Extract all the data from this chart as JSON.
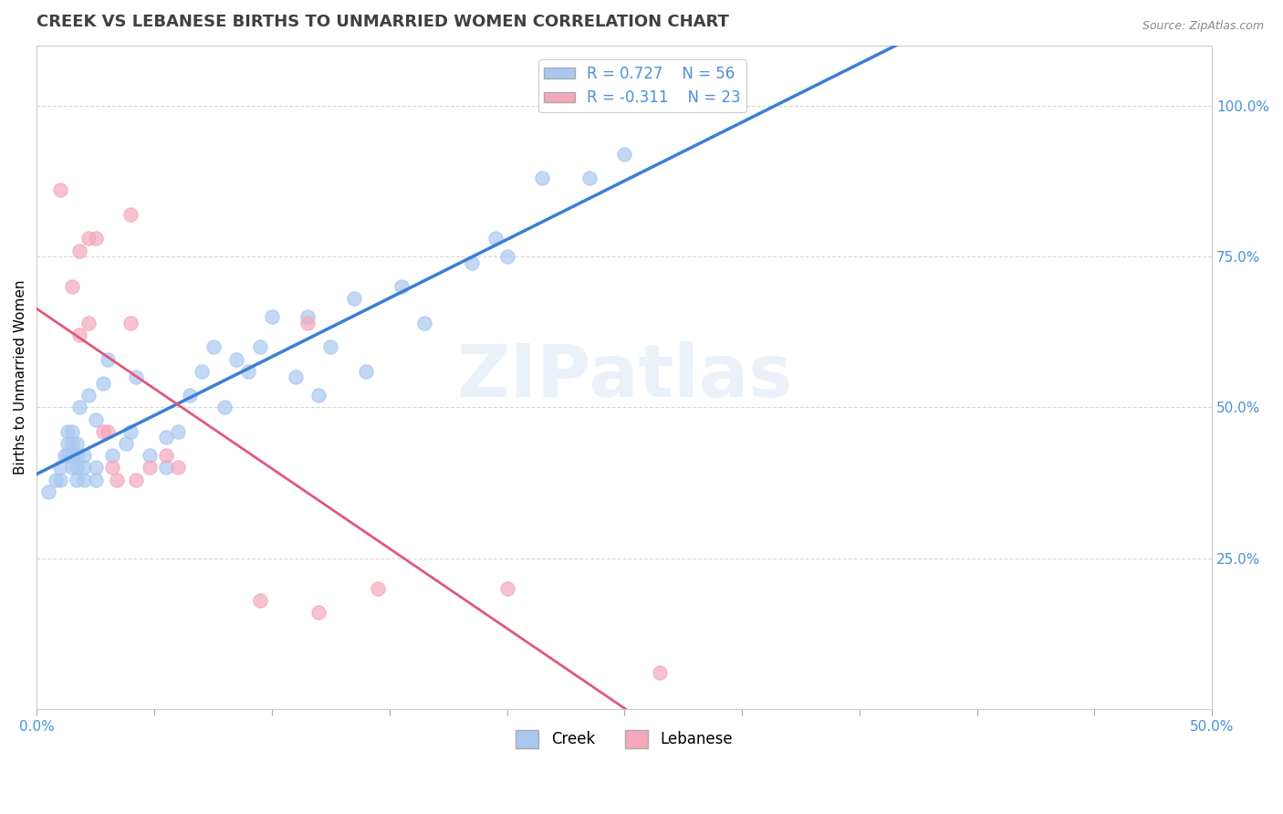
{
  "title": "CREEK VS LEBANESE BIRTHS TO UNMARRIED WOMEN CORRELATION CHART",
  "source": "Source: ZipAtlas.com",
  "ylabel": "Births to Unmarried Women",
  "xlim": [
    0.0,
    0.5
  ],
  "ylim": [
    0.0,
    1.1
  ],
  "x_tick_positions": [
    0.0,
    0.05,
    0.1,
    0.15,
    0.2,
    0.25,
    0.3,
    0.35,
    0.4,
    0.45,
    0.5
  ],
  "x_tick_labels": [
    "0.0%",
    "",
    "",
    "",
    "",
    "",
    "",
    "",
    "",
    "",
    "50.0%"
  ],
  "y_tick_positions": [
    0.25,
    0.5,
    0.75,
    1.0
  ],
  "y_tick_labels": [
    "25.0%",
    "50.0%",
    "75.0%",
    "100.0%"
  ],
  "creek_color": "#a8c8f0",
  "lebanese_color": "#f4a8bc",
  "creek_line_color": "#3a7fd5",
  "lebanese_line_color": "#e05878",
  "creek_scatter": [
    [
      0.005,
      0.36
    ],
    [
      0.008,
      0.38
    ],
    [
      0.01,
      0.38
    ],
    [
      0.01,
      0.4
    ],
    [
      0.012,
      0.42
    ],
    [
      0.013,
      0.42
    ],
    [
      0.013,
      0.44
    ],
    [
      0.013,
      0.46
    ],
    [
      0.015,
      0.4
    ],
    [
      0.015,
      0.42
    ],
    [
      0.015,
      0.44
    ],
    [
      0.015,
      0.46
    ],
    [
      0.017,
      0.38
    ],
    [
      0.017,
      0.4
    ],
    [
      0.017,
      0.42
    ],
    [
      0.017,
      0.44
    ],
    [
      0.018,
      0.5
    ],
    [
      0.02,
      0.38
    ],
    [
      0.02,
      0.4
    ],
    [
      0.02,
      0.42
    ],
    [
      0.022,
      0.52
    ],
    [
      0.025,
      0.38
    ],
    [
      0.025,
      0.4
    ],
    [
      0.025,
      0.48
    ],
    [
      0.028,
      0.54
    ],
    [
      0.03,
      0.58
    ],
    [
      0.032,
      0.42
    ],
    [
      0.038,
      0.44
    ],
    [
      0.04,
      0.46
    ],
    [
      0.042,
      0.55
    ],
    [
      0.048,
      0.42
    ],
    [
      0.055,
      0.4
    ],
    [
      0.055,
      0.45
    ],
    [
      0.06,
      0.46
    ],
    [
      0.065,
      0.52
    ],
    [
      0.07,
      0.56
    ],
    [
      0.075,
      0.6
    ],
    [
      0.08,
      0.5
    ],
    [
      0.085,
      0.58
    ],
    [
      0.09,
      0.56
    ],
    [
      0.095,
      0.6
    ],
    [
      0.1,
      0.65
    ],
    [
      0.11,
      0.55
    ],
    [
      0.115,
      0.65
    ],
    [
      0.12,
      0.52
    ],
    [
      0.125,
      0.6
    ],
    [
      0.135,
      0.68
    ],
    [
      0.14,
      0.56
    ],
    [
      0.155,
      0.7
    ],
    [
      0.165,
      0.64
    ],
    [
      0.185,
      0.74
    ],
    [
      0.195,
      0.78
    ],
    [
      0.2,
      0.75
    ],
    [
      0.215,
      0.88
    ],
    [
      0.235,
      0.88
    ],
    [
      0.25,
      0.92
    ]
  ],
  "lebanese_scatter": [
    [
      0.01,
      0.86
    ],
    [
      0.015,
      0.7
    ],
    [
      0.018,
      0.76
    ],
    [
      0.018,
      0.62
    ],
    [
      0.022,
      0.78
    ],
    [
      0.022,
      0.64
    ],
    [
      0.025,
      0.78
    ],
    [
      0.028,
      0.46
    ],
    [
      0.03,
      0.46
    ],
    [
      0.032,
      0.4
    ],
    [
      0.034,
      0.38
    ],
    [
      0.04,
      0.82
    ],
    [
      0.04,
      0.64
    ],
    [
      0.042,
      0.38
    ],
    [
      0.048,
      0.4
    ],
    [
      0.055,
      0.42
    ],
    [
      0.06,
      0.4
    ],
    [
      0.095,
      0.18
    ],
    [
      0.115,
      0.64
    ],
    [
      0.12,
      0.16
    ],
    [
      0.145,
      0.2
    ],
    [
      0.2,
      0.2
    ],
    [
      0.265,
      0.06
    ]
  ],
  "background_color": "#ffffff",
  "grid_color": "#cccccc",
  "title_fontsize": 13,
  "label_fontsize": 11,
  "tick_fontsize": 11,
  "watermark_text": "ZIPatlas",
  "watermark_color": "#c5d8ee",
  "watermark_alpha": 0.35
}
